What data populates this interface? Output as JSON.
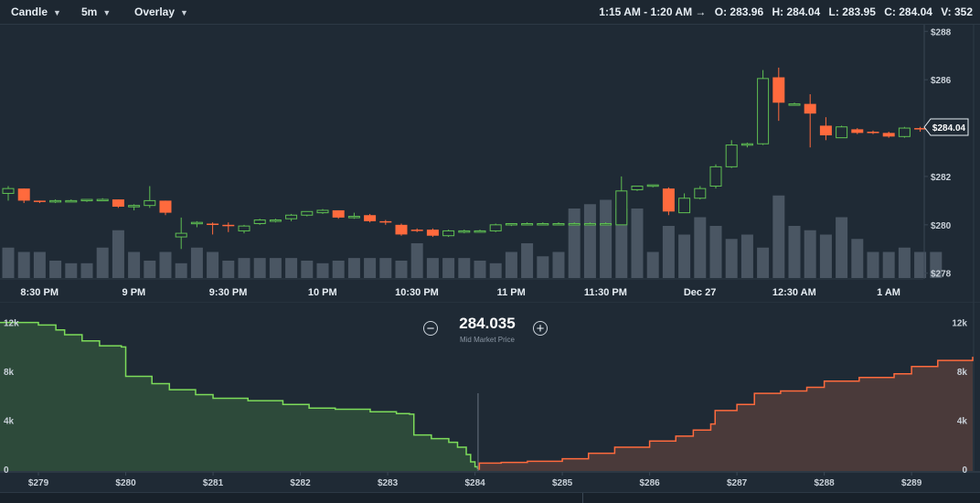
{
  "toolbar": {
    "chart_type": "Candle",
    "interval": "5m",
    "overlay": "Overlay",
    "ohlc": {
      "range": "1:15 AM - 1:20 AM →",
      "open": "O: 283.96",
      "high": "H: 284.04",
      "low": "L: 283.95",
      "close": "C: 284.04",
      "volume": "V: 352"
    }
  },
  "colors": {
    "up": "#5fbf52",
    "down": "#ff6a3d",
    "bid": "#7ddc5a",
    "ask": "#ff6a3d",
    "volume": "#4a5663",
    "background": "#1f2a35"
  },
  "price_chart": {
    "price_axis_labels": [
      "$288",
      "$286",
      "$284",
      "$282",
      "$280",
      "$278"
    ],
    "price_ticks": [
      288,
      286,
      284,
      282,
      280,
      278
    ],
    "y_range": [
      277.8,
      288.2
    ],
    "current_price_label": "$284.04",
    "current_price": 284.04,
    "time_labels": [
      "8:30 PM",
      "9 PM",
      "9:30 PM",
      "10 PM",
      "10:30 PM",
      "11 PM",
      "11:30 PM",
      "Dec 27",
      "12:30 AM",
      "1 AM"
    ],
    "time_tick_index": [
      1,
      7,
      13,
      19,
      25,
      31,
      37,
      43,
      49,
      55
    ],
    "candles": [
      {
        "o": 281.3,
        "h": 281.6,
        "l": 281.0,
        "c": 281.5
      },
      {
        "o": 281.5,
        "h": 281.5,
        "l": 280.9,
        "c": 281.0
      },
      {
        "o": 281.0,
        "h": 281.0,
        "l": 280.9,
        "c": 280.95
      },
      {
        "o": 280.95,
        "h": 281.05,
        "l": 280.9,
        "c": 281.0
      },
      {
        "o": 281.0,
        "h": 281.05,
        "l": 280.95,
        "c": 281.0
      },
      {
        "o": 281.0,
        "h": 281.05,
        "l": 280.95,
        "c": 281.05
      },
      {
        "o": 281.05,
        "h": 281.1,
        "l": 281.0,
        "c": 281.05
      },
      {
        "o": 281.05,
        "h": 281.05,
        "l": 280.7,
        "c": 280.75
      },
      {
        "o": 280.75,
        "h": 280.85,
        "l": 280.6,
        "c": 280.8
      },
      {
        "o": 280.8,
        "h": 281.6,
        "l": 280.7,
        "c": 281.0
      },
      {
        "o": 281.0,
        "h": 281.0,
        "l": 280.4,
        "c": 280.5
      },
      {
        "o": 279.5,
        "h": 280.3,
        "l": 279.0,
        "c": 279.65
      },
      {
        "o": 280.05,
        "h": 280.15,
        "l": 279.9,
        "c": 280.1
      },
      {
        "o": 280.05,
        "h": 280.1,
        "l": 279.6,
        "c": 280.0
      },
      {
        "o": 280.0,
        "h": 280.1,
        "l": 279.7,
        "c": 279.95
      },
      {
        "o": 279.75,
        "h": 280.0,
        "l": 279.65,
        "c": 279.95
      },
      {
        "o": 280.05,
        "h": 280.25,
        "l": 280.0,
        "c": 280.2
      },
      {
        "o": 280.2,
        "h": 280.25,
        "l": 280.1,
        "c": 280.2
      },
      {
        "o": 280.25,
        "h": 280.45,
        "l": 280.15,
        "c": 280.4
      },
      {
        "o": 280.4,
        "h": 280.55,
        "l": 280.35,
        "c": 280.55
      },
      {
        "o": 280.5,
        "h": 280.65,
        "l": 280.45,
        "c": 280.6
      },
      {
        "o": 280.6,
        "h": 280.6,
        "l": 280.25,
        "c": 280.3
      },
      {
        "o": 280.3,
        "h": 280.5,
        "l": 280.25,
        "c": 280.35
      },
      {
        "o": 280.4,
        "h": 280.45,
        "l": 280.1,
        "c": 280.15
      },
      {
        "o": 280.15,
        "h": 280.2,
        "l": 280.0,
        "c": 280.1
      },
      {
        "o": 280.0,
        "h": 280.05,
        "l": 279.55,
        "c": 279.6
      },
      {
        "o": 279.8,
        "h": 279.85,
        "l": 279.7,
        "c": 279.75
      },
      {
        "o": 279.8,
        "h": 279.85,
        "l": 279.5,
        "c": 279.55
      },
      {
        "o": 279.55,
        "h": 279.8,
        "l": 279.5,
        "c": 279.75
      },
      {
        "o": 279.7,
        "h": 279.8,
        "l": 279.65,
        "c": 279.75
      },
      {
        "o": 279.75,
        "h": 279.8,
        "l": 279.7,
        "c": 279.75
      },
      {
        "o": 279.75,
        "h": 280.05,
        "l": 279.7,
        "c": 280.0
      },
      {
        "o": 280.0,
        "h": 280.05,
        "l": 279.95,
        "c": 280.05
      },
      {
        "o": 280.05,
        "h": 280.1,
        "l": 280.0,
        "c": 280.05
      },
      {
        "o": 280.05,
        "h": 280.1,
        "l": 280.0,
        "c": 280.05
      },
      {
        "o": 280.05,
        "h": 280.1,
        "l": 280.0,
        "c": 280.05
      },
      {
        "o": 280.05,
        "h": 280.1,
        "l": 280.0,
        "c": 280.05
      },
      {
        "o": 280.05,
        "h": 280.1,
        "l": 280.0,
        "c": 280.05
      },
      {
        "o": 280.05,
        "h": 280.1,
        "l": 280.0,
        "c": 280.05
      },
      {
        "o": 280.0,
        "h": 282.0,
        "l": 280.0,
        "c": 281.4
      },
      {
        "o": 281.45,
        "h": 281.6,
        "l": 281.4,
        "c": 281.6
      },
      {
        "o": 281.6,
        "h": 281.65,
        "l": 281.55,
        "c": 281.65
      },
      {
        "o": 281.5,
        "h": 281.55,
        "l": 280.4,
        "c": 280.55
      },
      {
        "o": 280.5,
        "h": 281.3,
        "l": 280.5,
        "c": 281.1
      },
      {
        "o": 281.1,
        "h": 281.6,
        "l": 281.05,
        "c": 281.5
      },
      {
        "o": 281.6,
        "h": 282.5,
        "l": 281.5,
        "c": 282.4
      },
      {
        "o": 282.4,
        "h": 283.5,
        "l": 282.35,
        "c": 283.3
      },
      {
        "o": 283.3,
        "h": 283.4,
        "l": 283.2,
        "c": 283.35
      },
      {
        "o": 283.35,
        "h": 286.4,
        "l": 283.3,
        "c": 286.05
      },
      {
        "o": 286.1,
        "h": 286.5,
        "l": 284.3,
        "c": 285.05
      },
      {
        "o": 285.0,
        "h": 285.05,
        "l": 284.95,
        "c": 285.0
      },
      {
        "o": 285.0,
        "h": 285.4,
        "l": 283.2,
        "c": 284.6
      },
      {
        "o": 284.1,
        "h": 284.45,
        "l": 283.5,
        "c": 283.7
      },
      {
        "o": 283.6,
        "h": 284.1,
        "l": 283.6,
        "c": 284.05
      },
      {
        "o": 283.95,
        "h": 284.0,
        "l": 283.75,
        "c": 283.8
      },
      {
        "o": 283.85,
        "h": 283.9,
        "l": 283.75,
        "c": 283.8
      },
      {
        "o": 283.8,
        "h": 283.85,
        "l": 283.6,
        "c": 283.65
      },
      {
        "o": 283.65,
        "h": 284.05,
        "l": 283.6,
        "c": 284.0
      },
      {
        "o": 284.0,
        "h": 284.05,
        "l": 283.85,
        "c": 283.95
      },
      {
        "o": 283.96,
        "h": 284.04,
        "l": 283.95,
        "c": 284.04
      }
    ],
    "volumes": [
      0.35,
      0.3,
      0.3,
      0.2,
      0.17,
      0.17,
      0.35,
      0.55,
      0.3,
      0.2,
      0.3,
      0.17,
      0.35,
      0.3,
      0.2,
      0.23,
      0.23,
      0.23,
      0.23,
      0.2,
      0.17,
      0.2,
      0.23,
      0.23,
      0.23,
      0.2,
      0.4,
      0.23,
      0.23,
      0.23,
      0.2,
      0.17,
      0.3,
      0.4,
      0.25,
      0.3,
      0.8,
      0.85,
      0.9,
      0.8,
      0.8,
      0.3,
      0.6,
      0.5,
      0.7,
      0.6,
      0.45,
      0.5,
      0.35,
      0.95,
      0.6,
      0.55,
      0.5,
      0.7,
      0.45,
      0.3,
      0.3,
      0.35,
      0.3,
      0.3
    ]
  },
  "depth_chart": {
    "mid_price": "284.035",
    "mid_label": "Mid Market Price",
    "x_labels": [
      "$279",
      "$280",
      "$281",
      "$282",
      "$283",
      "$284",
      "$285",
      "$286",
      "$287",
      "$288",
      "$289"
    ],
    "x_ticks": [
      279,
      280,
      281,
      282,
      283,
      284,
      285,
      286,
      287,
      288,
      289
    ],
    "x_range": [
      278.56,
      289.7
    ],
    "y_labels_left": [
      "12k",
      "8k",
      "4k",
      "0"
    ],
    "y_labels_right": [
      "12k",
      "8k",
      "4k",
      "0"
    ],
    "y_ticks": [
      12000,
      8000,
      4000,
      0
    ],
    "y_max": 12500,
    "bids": [
      [
        278.56,
        12000
      ],
      [
        278.85,
        12000
      ],
      [
        279.0,
        11800
      ],
      [
        279.2,
        11400
      ],
      [
        279.3,
        11000
      ],
      [
        279.5,
        10500
      ],
      [
        279.7,
        10100
      ],
      [
        279.95,
        10000
      ],
      [
        280.0,
        7600
      ],
      [
        280.3,
        7000
      ],
      [
        280.5,
        6500
      ],
      [
        280.8,
        6100
      ],
      [
        281.0,
        5800
      ],
      [
        281.4,
        5600
      ],
      [
        281.8,
        5300
      ],
      [
        282.1,
        5000
      ],
      [
        282.4,
        4900
      ],
      [
        282.8,
        4700
      ],
      [
        283.1,
        4550
      ],
      [
        283.25,
        4500
      ],
      [
        283.3,
        2800
      ],
      [
        283.5,
        2500
      ],
      [
        283.7,
        2200
      ],
      [
        283.8,
        1800
      ],
      [
        283.9,
        1200
      ],
      [
        283.95,
        600
      ],
      [
        284.0,
        200
      ],
      [
        284.03,
        0
      ]
    ],
    "asks": [
      [
        284.04,
        0
      ],
      [
        284.05,
        500
      ],
      [
        284.3,
        550
      ],
      [
        284.6,
        650
      ],
      [
        285.0,
        850
      ],
      [
        285.3,
        1300
      ],
      [
        285.6,
        1800
      ],
      [
        286.0,
        2300
      ],
      [
        286.3,
        2700
      ],
      [
        286.5,
        3200
      ],
      [
        286.7,
        3700
      ],
      [
        286.75,
        4800
      ],
      [
        287.0,
        5300
      ],
      [
        287.2,
        6200
      ],
      [
        287.5,
        6400
      ],
      [
        287.8,
        6700
      ],
      [
        288.0,
        7200
      ],
      [
        288.4,
        7500
      ],
      [
        288.8,
        7800
      ],
      [
        289.0,
        8400
      ],
      [
        289.3,
        8900
      ],
      [
        289.7,
        9200
      ]
    ]
  }
}
